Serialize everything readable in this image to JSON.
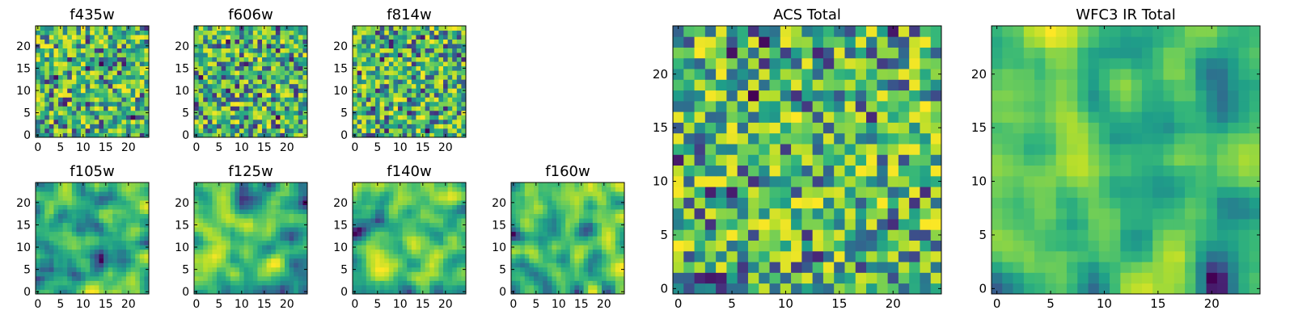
{
  "chart_data": [
    {
      "type": "heatmap",
      "title": "f435w",
      "size": 25,
      "xticks": [
        0,
        5,
        10,
        15,
        20
      ],
      "yticks": [
        0,
        5,
        10,
        15,
        20
      ],
      "xlim": [
        -0.5,
        24.5
      ],
      "ylim": [
        -0.5,
        24.5
      ],
      "colormap": "viridis",
      "texture": "noise",
      "seed": 11
    },
    {
      "type": "heatmap",
      "title": "f606w",
      "size": 25,
      "xticks": [
        0,
        5,
        10,
        15,
        20
      ],
      "yticks": [
        0,
        5,
        10,
        15,
        20
      ],
      "xlim": [
        -0.5,
        24.5
      ],
      "ylim": [
        -0.5,
        24.5
      ],
      "colormap": "viridis",
      "texture": "noise",
      "seed": 23
    },
    {
      "type": "heatmap",
      "title": "f814w",
      "size": 25,
      "xticks": [
        0,
        5,
        10,
        15,
        20
      ],
      "yticks": [
        0,
        5,
        10,
        15,
        20
      ],
      "xlim": [
        -0.5,
        24.5
      ],
      "ylim": [
        -0.5,
        24.5
      ],
      "colormap": "viridis",
      "texture": "noise",
      "seed": 37
    },
    {
      "type": "heatmap",
      "title": "f105w",
      "size": 25,
      "xticks": [
        0,
        5,
        10,
        15,
        20
      ],
      "yticks": [
        0,
        5,
        10,
        15,
        20
      ],
      "xlim": [
        -0.5,
        24.5
      ],
      "ylim": [
        -0.5,
        24.5
      ],
      "colormap": "viridis",
      "texture": "smooth",
      "seed": 41
    },
    {
      "type": "heatmap",
      "title": "f125w",
      "size": 25,
      "xticks": [
        0,
        5,
        10,
        15,
        20
      ],
      "yticks": [
        0,
        5,
        10,
        15,
        20
      ],
      "xlim": [
        -0.5,
        24.5
      ],
      "ylim": [
        -0.5,
        24.5
      ],
      "colormap": "viridis",
      "texture": "smooth",
      "seed": 53
    },
    {
      "type": "heatmap",
      "title": "f140w",
      "size": 25,
      "xticks": [
        0,
        5,
        10,
        15,
        20
      ],
      "yticks": [
        0,
        5,
        10,
        15,
        20
      ],
      "xlim": [
        -0.5,
        24.5
      ],
      "ylim": [
        -0.5,
        24.5
      ],
      "colormap": "viridis",
      "texture": "smooth",
      "seed": 67
    },
    {
      "type": "heatmap",
      "title": "f160w",
      "size": 25,
      "xticks": [
        0,
        5,
        10,
        15,
        20
      ],
      "yticks": [
        0,
        5,
        10,
        15,
        20
      ],
      "xlim": [
        -0.5,
        24.5
      ],
      "ylim": [
        -0.5,
        24.5
      ],
      "colormap": "viridis",
      "texture": "smooth",
      "seed": 79
    },
    {
      "type": "heatmap",
      "title": "ACS Total",
      "size": 25,
      "xticks": [
        0,
        5,
        10,
        15,
        20
      ],
      "yticks": [
        0,
        5,
        10,
        15,
        20
      ],
      "xlim": [
        -0.5,
        24.5
      ],
      "ylim": [
        -0.5,
        24.5
      ],
      "colormap": "viridis",
      "texture": "noise",
      "seed": 97
    },
    {
      "type": "heatmap",
      "title": "WFC3 IR Total",
      "size": 25,
      "xticks": [
        0,
        5,
        10,
        15,
        20
      ],
      "yticks": [
        0,
        5,
        10,
        15,
        20
      ],
      "xlim": [
        -0.5,
        24.5
      ],
      "ylim": [
        -0.5,
        24.5
      ],
      "colormap": "viridis",
      "texture": "smooth",
      "seed": 131
    }
  ]
}
